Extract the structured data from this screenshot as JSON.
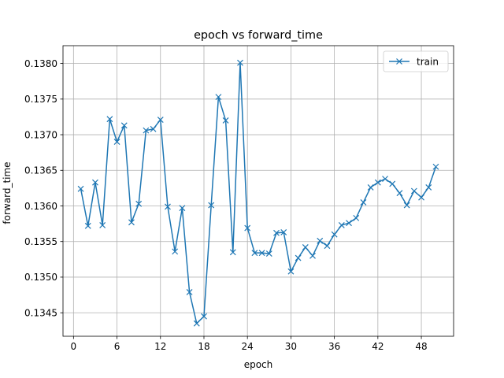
{
  "chart_data": {
    "type": "line",
    "title": "epoch vs forward_time",
    "xlabel": "epoch",
    "ylabel": "forward_time",
    "xlim": [
      -1.45,
      52.45
    ],
    "ylim": [
      0.13417,
      0.13825
    ],
    "xticks": [
      0,
      6,
      12,
      18,
      24,
      30,
      36,
      42,
      48
    ],
    "yticks": [
      0.1345,
      0.135,
      0.1355,
      0.136,
      0.1365,
      0.137,
      0.1375,
      0.138
    ],
    "ytick_labels": [
      "0.1345",
      "0.1350",
      "0.1355",
      "0.1360",
      "0.1365",
      "0.1370",
      "0.1375",
      "0.1380"
    ],
    "grid": true,
    "legend_position": "top-right",
    "series": [
      {
        "name": "train",
        "color": "#1f77b4",
        "marker": "x",
        "x": [
          1,
          2,
          3,
          4,
          5,
          6,
          7,
          8,
          9,
          10,
          11,
          12,
          13,
          14,
          15,
          16,
          17,
          18,
          19,
          20,
          21,
          22,
          23,
          24,
          25,
          26,
          27,
          28,
          29,
          30,
          31,
          32,
          33,
          34,
          35,
          36,
          37,
          38,
          39,
          40,
          41,
          42,
          43,
          44,
          45,
          46,
          47,
          48,
          49,
          50
        ],
        "y": [
          0.13624,
          0.13572,
          0.13633,
          0.13573,
          0.13722,
          0.1369,
          0.13713,
          0.13577,
          0.13603,
          0.13706,
          0.13708,
          0.13721,
          0.13599,
          0.13536,
          0.13597,
          0.13479,
          0.13435,
          0.13445,
          0.13601,
          0.13753,
          0.1372,
          0.13535,
          0.13801,
          0.13569,
          0.13534,
          0.13534,
          0.13533,
          0.13562,
          0.13563,
          0.13508,
          0.13527,
          0.13542,
          0.1353,
          0.13551,
          0.13544,
          0.1356,
          0.13573,
          0.13576,
          0.13583,
          0.13605,
          0.13626,
          0.13633,
          0.13638,
          0.13631,
          0.13618,
          0.13601,
          0.13621,
          0.13612,
          0.13626,
          0.13655
        ]
      }
    ]
  }
}
